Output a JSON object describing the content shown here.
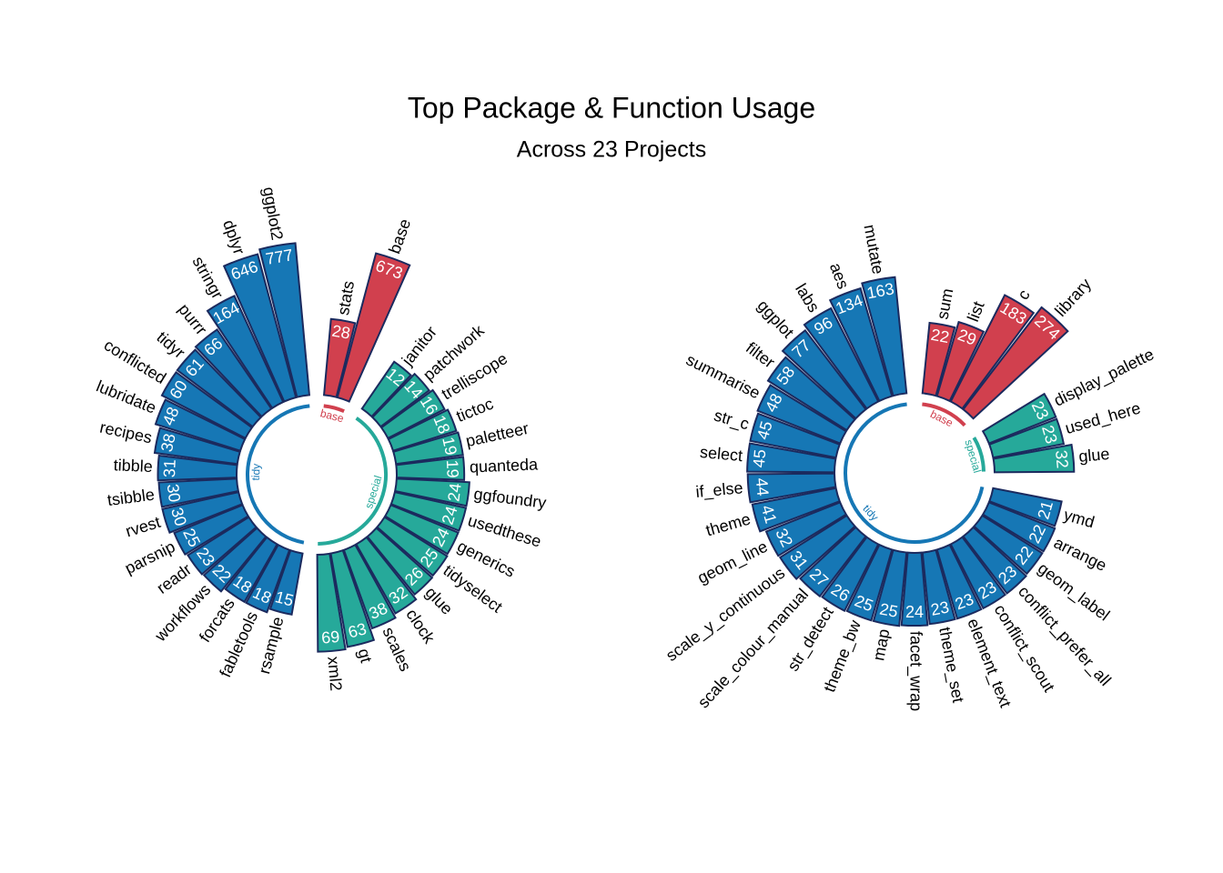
{
  "title": "Top Package & Function Usage",
  "subtitle": "Across 23 Projects",
  "chart_data": [
    {
      "type": "polar_bar",
      "scale": "log",
      "groups": [
        {
          "name": "base",
          "color": "#d1404e",
          "categories": [
            "stats",
            "base"
          ],
          "values": [
            28,
            673
          ]
        },
        {
          "name": "special",
          "color": "#26a99a",
          "categories": [
            "janitor",
            "patchwork",
            "trelliscope",
            "tictoc",
            "paletteer",
            "quanteda",
            "ggfoundry",
            "usedthese",
            "generics",
            "tidyselect",
            "glue",
            "clock",
            "scales",
            "gt",
            "xml2"
          ],
          "values": [
            12,
            14,
            16,
            18,
            19,
            19,
            24,
            24,
            24,
            25,
            26,
            32,
            38,
            63,
            69
          ]
        },
        {
          "name": "tidy",
          "color": "#1677b5",
          "categories": [
            "rsample",
            "fabletools",
            "forcats",
            "workflows",
            "readr",
            "parsnip",
            "rvest",
            "tsibble",
            "tibble",
            "recipes",
            "lubridate",
            "conflicted",
            "tidyr",
            "purrr",
            "stringr",
            "dplyr",
            "ggplot2"
          ],
          "values": [
            15,
            18,
            18,
            22,
            23,
            25,
            30,
            30,
            31,
            38,
            48,
            60,
            61,
            66,
            164,
            646,
            777
          ]
        }
      ]
    },
    {
      "type": "polar_bar",
      "scale": "log",
      "groups": [
        {
          "name": "base",
          "color": "#d1404e",
          "categories": [
            "sum",
            "list",
            "c",
            "library"
          ],
          "values": [
            22,
            29,
            183,
            274
          ]
        },
        {
          "name": "special",
          "color": "#26a99a",
          "categories": [
            "display_palette",
            "used_here",
            "glue"
          ],
          "values": [
            23,
            23,
            32
          ]
        },
        {
          "name": "tidy",
          "color": "#1677b5",
          "categories": [
            "ymd",
            "arrange",
            "geom_label",
            "conflict_prefer_all",
            "conflict_scout",
            "element_text",
            "theme_set",
            "facet_wrap",
            "map",
            "theme_bw",
            "str_detect",
            "scale_colour_manual",
            "scale_y_continuous",
            "geom_line",
            "theme",
            "if_else",
            "select",
            "str_c",
            "summarise",
            "filter",
            "ggplot",
            "labs",
            "aes",
            "mutate"
          ],
          "values": [
            21,
            22,
            22,
            23,
            23,
            23,
            23,
            24,
            25,
            25,
            26,
            27,
            31,
            32,
            41,
            44,
            45,
            45,
            48,
            58,
            77,
            96,
            134,
            163
          ]
        }
      ]
    }
  ]
}
